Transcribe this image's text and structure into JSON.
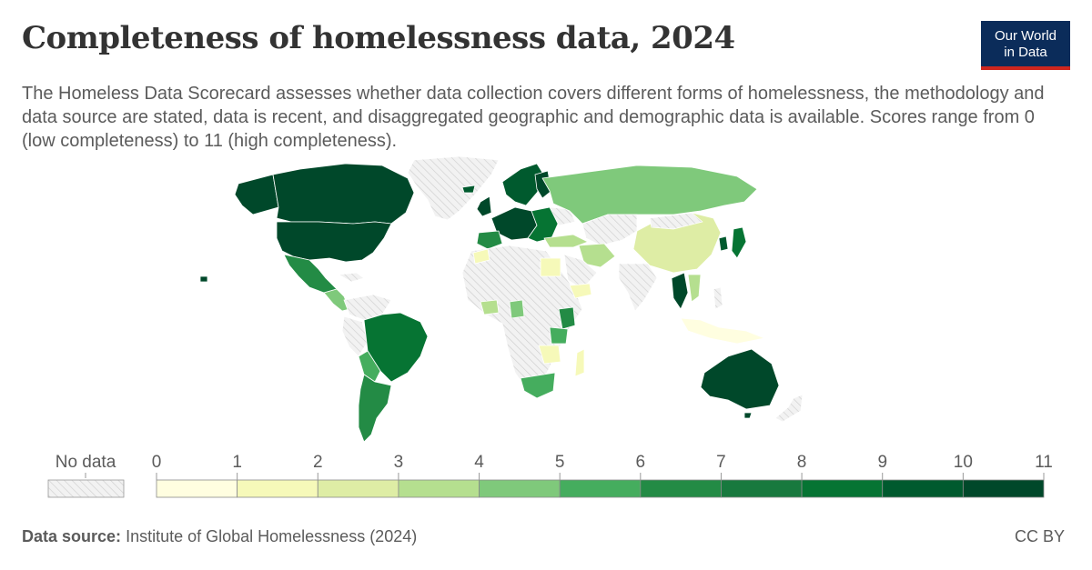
{
  "header": {
    "title": "Completeness of homelessness data, 2024",
    "subtitle": "The Homeless Data Scorecard assesses whether data collection covers different forms of homelessness, the methodology and data source are stated, data is recent, and disaggregated geographic and demographic data is available. Scores range from 0 (low completeness) to 11 (high completeness).",
    "logo_line1": "Our World",
    "logo_line2": "in Data"
  },
  "legend": {
    "no_data_label": "No data",
    "ticks": [
      "0",
      "1",
      "2",
      "3",
      "4",
      "5",
      "6",
      "7",
      "8",
      "9",
      "10",
      "11"
    ],
    "colors": [
      "#fffee0",
      "#f6f9b9",
      "#deeda5",
      "#b5df8f",
      "#7fc97b",
      "#45ad5e",
      "#238b45",
      "#18793e",
      "#067433",
      "#005a2e",
      "#00482a"
    ],
    "no_data_color": "#e6e6e6"
  },
  "footer": {
    "source_label": "Data source:",
    "source_text": "Institute of Global Homelessness (2024)",
    "license": "CC BY"
  },
  "map_colors": {
    "border": "#ffffff",
    "nodata_fill": "#ececec",
    "hatch": "#c9c9c9"
  }
}
